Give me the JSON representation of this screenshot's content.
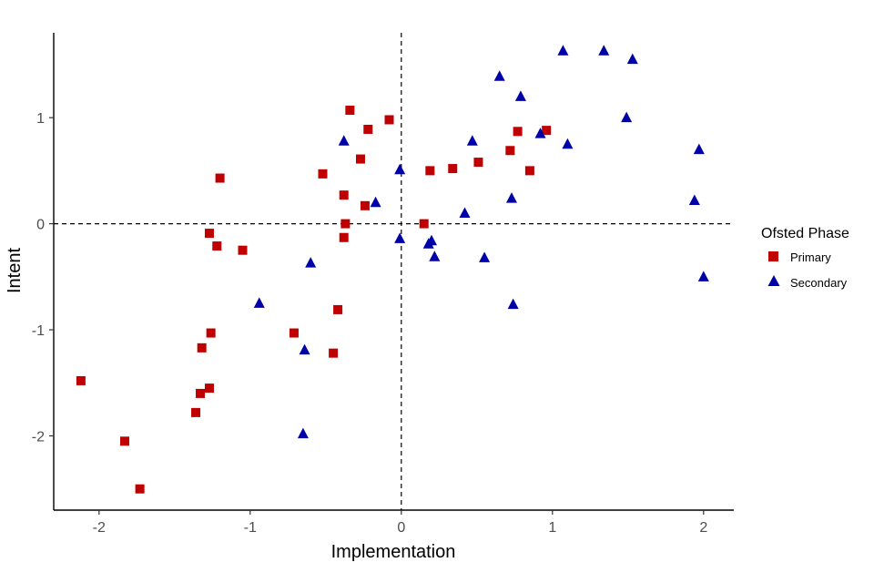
{
  "chart_data": {
    "type": "scatter",
    "title": "",
    "xlabel": "Implementation",
    "ylabel": "Intent",
    "xlim": [
      -2.3,
      2.2
    ],
    "ylim": [
      -2.7,
      1.8
    ],
    "xticks": [
      -2,
      -1,
      0,
      1,
      2
    ],
    "yticks": [
      -2,
      -1,
      0,
      1
    ],
    "xtick_labels": [
      "-2",
      "-1",
      "0",
      "1",
      "2"
    ],
    "ytick_labels": [
      "-2",
      "-1",
      "0",
      "1"
    ],
    "reference_lines": {
      "x": 0,
      "y": 0,
      "style": "dashed"
    },
    "grid": false,
    "legend": {
      "title": "Ofsted Phase",
      "position": "right",
      "entries": [
        "Primary",
        "Secondary"
      ]
    },
    "series": [
      {
        "name": "Primary",
        "marker": "square",
        "color": "#C00000",
        "points": [
          [
            -2.12,
            -1.48
          ],
          [
            -1.83,
            -2.05
          ],
          [
            -1.73,
            -2.5
          ],
          [
            -1.36,
            -1.78
          ],
          [
            -1.33,
            -1.6
          ],
          [
            -1.32,
            -1.17
          ],
          [
            -1.27,
            -1.55
          ],
          [
            -1.26,
            -1.03
          ],
          [
            -1.27,
            -0.09
          ],
          [
            -1.22,
            -0.21
          ],
          [
            -1.2,
            0.43
          ],
          [
            -1.05,
            -0.25
          ],
          [
            -0.71,
            -1.03
          ],
          [
            -0.45,
            -1.22
          ],
          [
            -0.42,
            -0.81
          ],
          [
            -0.52,
            0.47
          ],
          [
            -0.38,
            0.27
          ],
          [
            -0.37,
            0.0
          ],
          [
            -0.38,
            -0.13
          ],
          [
            -0.34,
            1.07
          ],
          [
            -0.27,
            0.61
          ],
          [
            -0.24,
            0.17
          ],
          [
            -0.22,
            0.89
          ],
          [
            -0.08,
            0.98
          ],
          [
            0.15,
            0.0
          ],
          [
            0.19,
            0.5
          ],
          [
            0.34,
            0.52
          ],
          [
            0.51,
            0.58
          ],
          [
            0.72,
            0.69
          ],
          [
            0.77,
            0.87
          ],
          [
            0.85,
            0.5
          ],
          [
            0.96,
            0.88
          ]
        ]
      },
      {
        "name": "Secondary",
        "marker": "triangle",
        "color": "#0000A8",
        "points": [
          [
            -0.94,
            -0.75
          ],
          [
            -0.65,
            -1.98
          ],
          [
            -0.64,
            -1.19
          ],
          [
            -0.6,
            -0.37
          ],
          [
            -0.38,
            0.78
          ],
          [
            -0.17,
            0.2
          ],
          [
            -0.01,
            -0.14
          ],
          [
            -0.01,
            0.51
          ],
          [
            0.18,
            -0.19
          ],
          [
            0.2,
            -0.16
          ],
          [
            0.22,
            -0.31
          ],
          [
            0.42,
            0.1
          ],
          [
            0.47,
            0.78
          ],
          [
            0.55,
            -0.32
          ],
          [
            0.65,
            1.39
          ],
          [
            0.73,
            0.24
          ],
          [
            0.74,
            -0.76
          ],
          [
            0.79,
            1.2
          ],
          [
            0.92,
            0.85
          ],
          [
            1.1,
            0.75
          ],
          [
            1.07,
            1.63
          ],
          [
            1.34,
            1.63
          ],
          [
            1.49,
            1.0
          ],
          [
            1.53,
            1.55
          ],
          [
            1.94,
            0.22
          ],
          [
            1.97,
            0.7
          ],
          [
            2.0,
            -0.5
          ]
        ]
      }
    ]
  }
}
